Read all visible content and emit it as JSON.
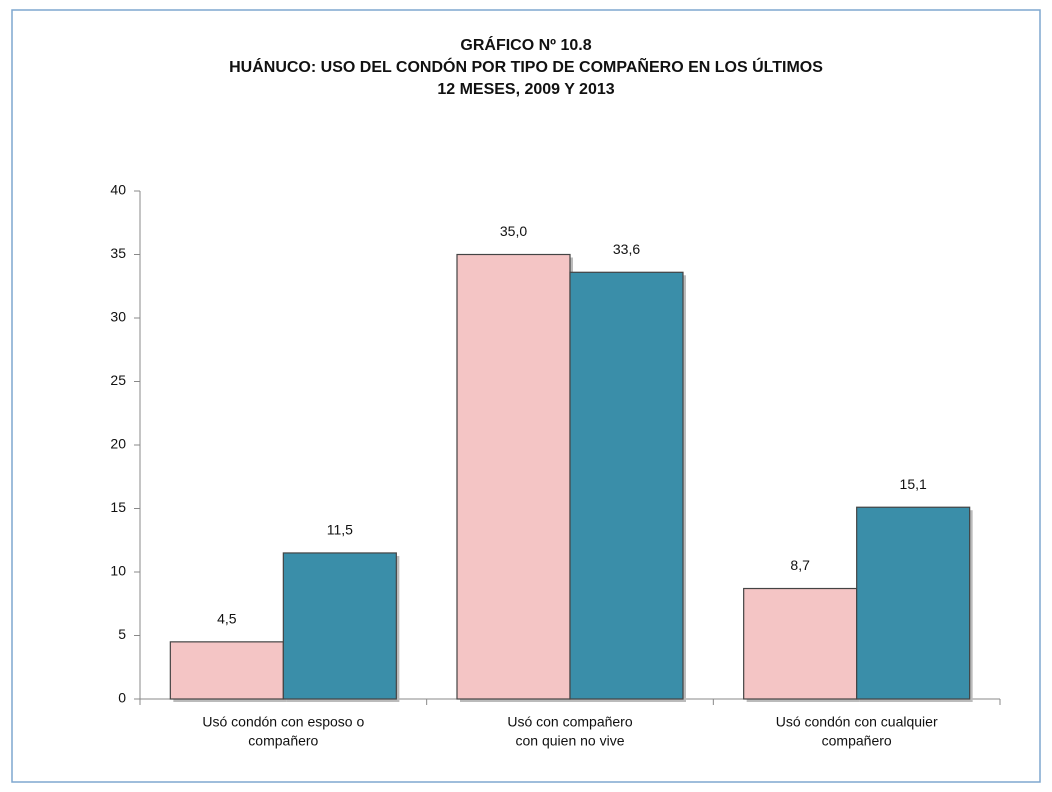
{
  "chart_data": {
    "type": "bar",
    "title": [
      "GRÁFICO Nº 10.8",
      "HUÁNUCO: USO DEL CONDÓN POR TIPO DE COMPAÑERO EN LOS ÚLTIMOS",
      "12 MESES, 2009 Y 2013"
    ],
    "categories": [
      [
        "Usó condón con esposo o",
        "compañero"
      ],
      [
        "Usó con compañero",
        "con quien no vive"
      ],
      [
        "Usó condón con cualquier",
        "compañero"
      ]
    ],
    "series": [
      {
        "color": "#f4c5c5",
        "values": [
          4.5,
          35.0,
          8.7
        ],
        "value_labels": [
          "4,5",
          "35,0",
          "8,7"
        ]
      },
      {
        "color": "#3a8ea9",
        "values": [
          11.5,
          33.6,
          15.1
        ],
        "value_labels": [
          "11,5",
          "33,6",
          "15,1"
        ]
      }
    ],
    "ylim": [
      0,
      40
    ],
    "yticks": [
      0,
      5,
      10,
      15,
      20,
      25,
      30,
      35,
      40
    ]
  }
}
